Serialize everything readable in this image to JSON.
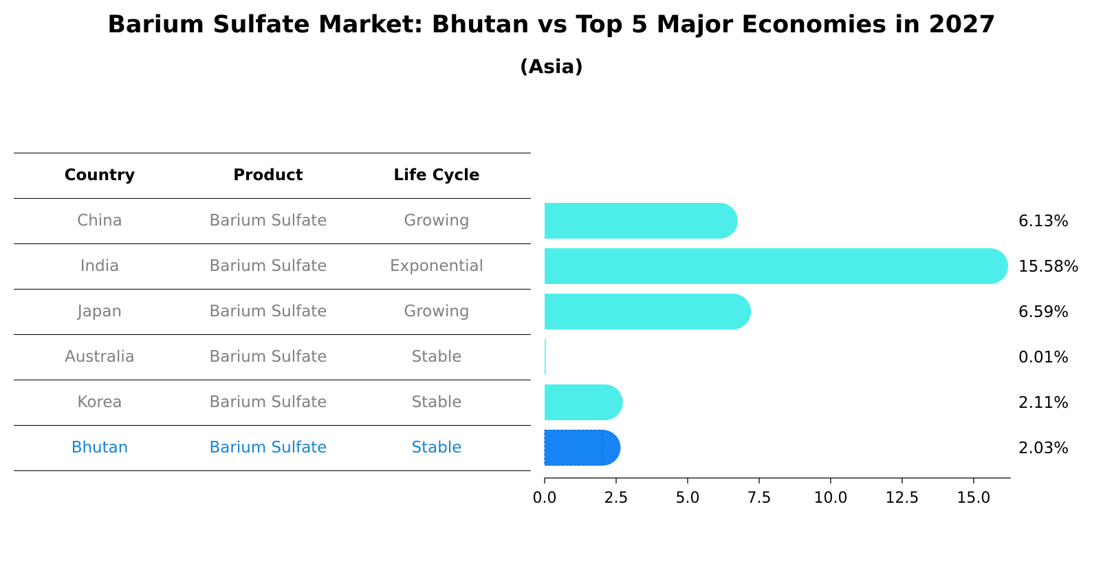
{
  "title": "Barium Sulfate Market: Bhutan vs Top 5 Major Economies in 2027",
  "subtitle": "(Asia)",
  "table": {
    "headers": [
      "Country",
      "Product",
      "Life Cycle"
    ],
    "rows": [
      [
        "China",
        "Barium Sulfate",
        "Growing"
      ],
      [
        "India",
        "Barium Sulfate",
        "Exponential"
      ],
      [
        "Japan",
        "Barium Sulfate",
        "Growing"
      ],
      [
        "Australia",
        "Barium Sulfate",
        "Stable"
      ],
      [
        "Korea",
        "Barium Sulfate",
        "Stable"
      ],
      [
        "Bhutan",
        "Barium Sulfate",
        "Stable"
      ]
    ]
  },
  "colors": {
    "bar": "#4deeea",
    "highlight_bar": "#1785f5",
    "row_text": "#808080",
    "highlight_text": "#1585d6"
  },
  "chart_data": {
    "type": "bar",
    "orientation": "horizontal",
    "categories": [
      "China",
      "India",
      "Japan",
      "Australia",
      "Korea",
      "Bhutan"
    ],
    "values": [
      6.13,
      15.58,
      6.59,
      0.01,
      2.11,
      2.03
    ],
    "value_labels": [
      "6.13%",
      "15.58%",
      "6.59%",
      "0.01%",
      "2.11%",
      "2.03%"
    ],
    "highlight": "Bhutan",
    "xlim": [
      0,
      16.3
    ],
    "xticks": [
      0.0,
      2.5,
      5.0,
      7.5,
      10.0,
      12.5,
      15.0
    ],
    "xtick_labels": [
      "0.0",
      "2.5",
      "5.0",
      "7.5",
      "10.0",
      "12.5",
      "15.0"
    ],
    "grid": false,
    "legend": "none"
  }
}
